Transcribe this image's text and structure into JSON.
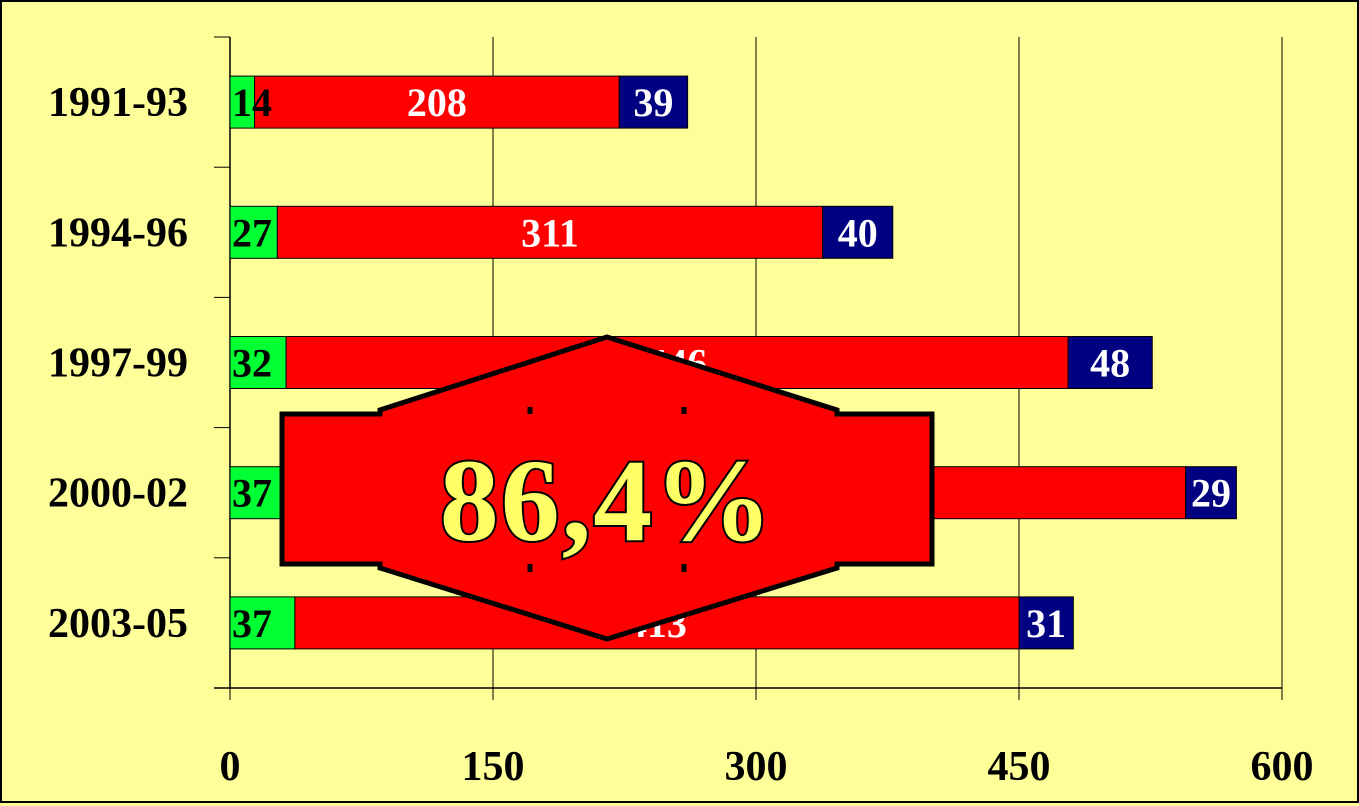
{
  "chart_data": {
    "type": "bar",
    "orientation": "horizontal",
    "stacked": true,
    "categories": [
      "1991-93",
      "1994-96",
      "1997-99",
      "2000-02",
      "2003-05"
    ],
    "series": [
      {
        "color": "#00ff33",
        "values": [
          14,
          27,
          32,
          37,
          37
        ]
      },
      {
        "color": "#ff0000",
        "values": [
          208,
          311,
          446,
          508,
          413
        ]
      },
      {
        "color": "#000080",
        "values": [
          39,
          40,
          48,
          29,
          31
        ]
      }
    ],
    "data_labels": [
      [
        "14",
        "208",
        "39"
      ],
      [
        "27",
        "311",
        "40"
      ],
      [
        "32",
        "446",
        "48"
      ],
      [
        "37",
        "508",
        "29"
      ],
      [
        "37",
        "413",
        "31"
      ]
    ],
    "xlim": [
      0,
      600
    ],
    "xticks": [
      "0",
      "150",
      "300",
      "450",
      "600"
    ],
    "grid": "vertical",
    "legend": "none",
    "title": "",
    "xlabel": "",
    "ylabel": "",
    "annotation": {
      "text": "86,4%",
      "shape": "double-arrow-up-down",
      "fill_color": "#ff0000",
      "text_color": "#ffff66"
    }
  }
}
